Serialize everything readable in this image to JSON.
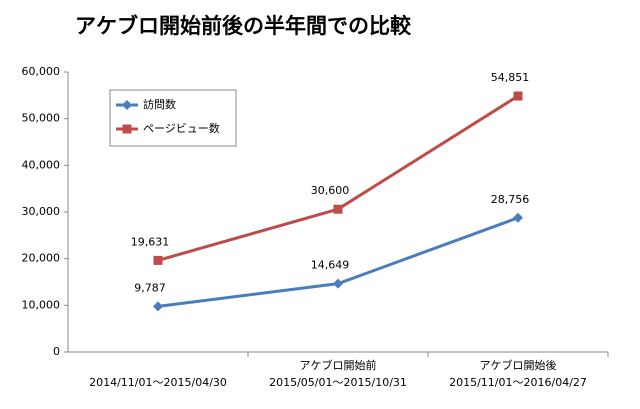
{
  "chart_data": {
    "type": "line",
    "title": "アケブロ開始前後の半年間での比較",
    "categories": [
      [
        "2014/11/01～2015/04/30"
      ],
      [
        "アケブロ開始前",
        "2015/05/01～2015/10/31"
      ],
      [
        "アケブロ開始後",
        "2015/11/01～2016/04/27"
      ]
    ],
    "series": [
      {
        "name": "訪問数",
        "color": "#4a7ebb",
        "marker": "diamond",
        "values": [
          9787,
          14649,
          28756
        ],
        "value_labels": [
          "9,787",
          "14,649",
          "28,756"
        ]
      },
      {
        "name": "ページビュー数",
        "color": "#be4b48",
        "marker": "square",
        "values": [
          19631,
          30600,
          54851
        ],
        "value_labels": [
          "19,631",
          "30,600",
          "54,851"
        ]
      }
    ],
    "ylim": [
      0,
      60000
    ],
    "yticks": [
      0,
      {
        "value": 10000,
        "label": "10,000"
      },
      {
        "value": 20000,
        "label": "20,000"
      },
      {
        "value": 30000,
        "label": "30,000"
      },
      {
        "value": 40000,
        "label": "40,000"
      },
      {
        "value": 50000,
        "label": "50,000"
      },
      {
        "value": 60000,
        "label": "60,000"
      }
    ],
    "grid": false,
    "legend": "upper-left"
  }
}
